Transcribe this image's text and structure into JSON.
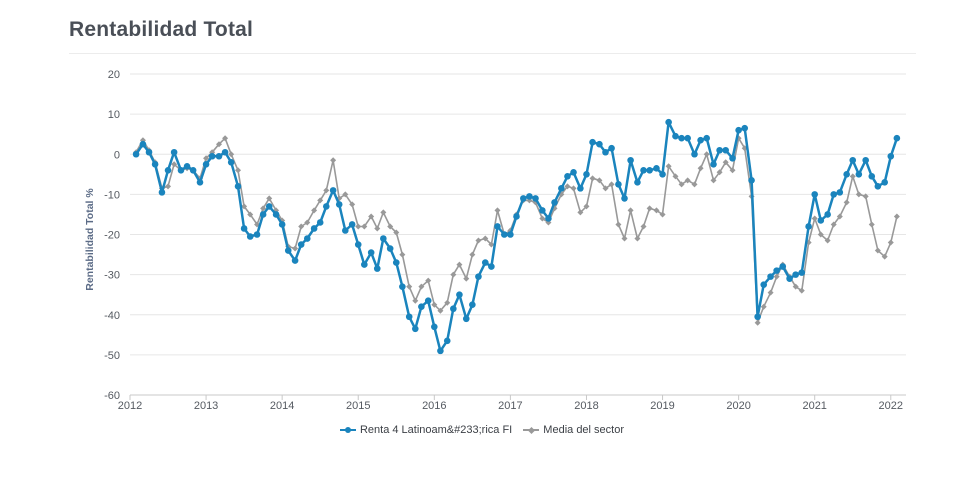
{
  "title": "Rentabilidad Total",
  "chart_data": {
    "type": "line",
    "ylabel": "Rentabilidad Total %",
    "xlabel": "",
    "ylim": [
      -60,
      20
    ],
    "xlim": [
      2012.0,
      2022.2
    ],
    "yticks": [
      20,
      10,
      0,
      -10,
      -20,
      -30,
      -40,
      -50,
      -60
    ],
    "xticks": [
      "2012",
      "2013",
      "2014",
      "2015",
      "2016",
      "2017",
      "2018",
      "2019",
      "2020",
      "2021",
      "2022"
    ],
    "legend_position": "bottom",
    "grid": true,
    "series": [
      {
        "name": "Renta 4 Latinoam&#233;rica FI",
        "color": "#1a84bd",
        "marker": "circle",
        "x": [
          2012.08,
          2012.17,
          2012.25,
          2012.33,
          2012.42,
          2012.5,
          2012.58,
          2012.67,
          2012.75,
          2012.83,
          2012.92,
          2013.0,
          2013.08,
          2013.17,
          2013.25,
          2013.33,
          2013.42,
          2013.5,
          2013.58,
          2013.67,
          2013.75,
          2013.83,
          2013.92,
          2014.0,
          2014.08,
          2014.17,
          2014.25,
          2014.33,
          2014.42,
          2014.5,
          2014.58,
          2014.67,
          2014.75,
          2014.83,
          2014.92,
          2015.0,
          2015.08,
          2015.17,
          2015.25,
          2015.33,
          2015.42,
          2015.5,
          2015.58,
          2015.67,
          2015.75,
          2015.83,
          2015.92,
          2016.0,
          2016.08,
          2016.17,
          2016.25,
          2016.33,
          2016.42,
          2016.5,
          2016.58,
          2016.67,
          2016.75,
          2016.83,
          2016.92,
          2017.0,
          2017.08,
          2017.17,
          2017.25,
          2017.33,
          2017.42,
          2017.5,
          2017.58,
          2017.67,
          2017.75,
          2017.83,
          2017.92,
          2018.0,
          2018.08,
          2018.17,
          2018.25,
          2018.33,
          2018.42,
          2018.5,
          2018.58,
          2018.67,
          2018.75,
          2018.83,
          2018.92,
          2019.0,
          2019.08,
          2019.17,
          2019.25,
          2019.33,
          2019.42,
          2019.5,
          2019.58,
          2019.67,
          2019.75,
          2019.83,
          2019.92,
          2020.0,
          2020.08,
          2020.17,
          2020.25,
          2020.33,
          2020.42,
          2020.5,
          2020.58,
          2020.67,
          2020.75,
          2020.83,
          2020.92,
          2021.0,
          2021.08,
          2021.17,
          2021.25,
          2021.33,
          2021.42,
          2021.5,
          2021.58,
          2021.67,
          2021.75,
          2021.83,
          2021.92,
          2022.0,
          2022.08
        ],
        "y": [
          0,
          2.5,
          0.5,
          -2.5,
          -9.5,
          -4,
          0.5,
          -4,
          -3,
          -4,
          -7,
          -2.5,
          -0.5,
          -0.5,
          0.5,
          -2,
          -8,
          -18.5,
          -20.5,
          -20,
          -15,
          -13,
          -15,
          -17.5,
          -24,
          -26.5,
          -22.5,
          -21,
          -18.5,
          -17,
          -13,
          -9,
          -12.5,
          -19,
          -17.5,
          -22.5,
          -27.5,
          -24.5,
          -28.5,
          -21,
          -23.5,
          -27,
          -33,
          -40.5,
          -43.5,
          -38,
          -36.5,
          -43,
          -49,
          -46.5,
          -38.5,
          -35,
          -41,
          -37.5,
          -30.5,
          -27,
          -28,
          -18,
          -20,
          -20,
          -15.5,
          -11,
          -10.5,
          -11,
          -14,
          -16,
          -12,
          -8.5,
          -5.5,
          -4.5,
          -8.5,
          -5,
          3,
          2.5,
          0.5,
          1.5,
          -7.5,
          -11,
          -1.5,
          -7,
          -4,
          -4,
          -3.5,
          -5,
          8,
          4.5,
          4,
          4,
          0,
          3.5,
          4,
          -2.5,
          1,
          1,
          -1,
          6,
          6.5,
          -6.5,
          -40.5,
          -32.5,
          -30.5,
          -29,
          -28,
          -31,
          -30,
          -29.5,
          -18,
          -10,
          -16.5,
          -15,
          -10,
          -9.5,
          -5,
          -1.5,
          -5,
          -1.5,
          -5.5,
          -8,
          -7,
          -0.5,
          4
        ]
      },
      {
        "name": "Media del sector",
        "color": "#999999",
        "marker": "diamond",
        "x": [
          2012.08,
          2012.17,
          2012.25,
          2012.33,
          2012.42,
          2012.5,
          2012.58,
          2012.67,
          2012.75,
          2012.83,
          2012.92,
          2013.0,
          2013.08,
          2013.17,
          2013.25,
          2013.33,
          2013.42,
          2013.5,
          2013.58,
          2013.67,
          2013.75,
          2013.83,
          2013.92,
          2014.0,
          2014.08,
          2014.17,
          2014.25,
          2014.33,
          2014.42,
          2014.5,
          2014.58,
          2014.67,
          2014.75,
          2014.83,
          2014.92,
          2015.0,
          2015.08,
          2015.17,
          2015.25,
          2015.33,
          2015.42,
          2015.5,
          2015.58,
          2015.67,
          2015.75,
          2015.83,
          2015.92,
          2016.0,
          2016.08,
          2016.17,
          2016.25,
          2016.33,
          2016.42,
          2016.5,
          2016.58,
          2016.67,
          2016.75,
          2016.83,
          2016.92,
          2017.0,
          2017.08,
          2017.17,
          2017.25,
          2017.33,
          2017.42,
          2017.5,
          2017.58,
          2017.67,
          2017.75,
          2017.83,
          2017.92,
          2018.0,
          2018.08,
          2018.17,
          2018.25,
          2018.33,
          2018.42,
          2018.5,
          2018.58,
          2018.67,
          2018.75,
          2018.83,
          2018.92,
          2019.0,
          2019.08,
          2019.17,
          2019.25,
          2019.33,
          2019.42,
          2019.5,
          2019.58,
          2019.67,
          2019.75,
          2019.83,
          2019.92,
          2020.0,
          2020.08,
          2020.17,
          2020.25,
          2020.33,
          2020.42,
          2020.5,
          2020.58,
          2020.67,
          2020.75,
          2020.83,
          2020.92,
          2021.0,
          2021.08,
          2021.17,
          2021.25,
          2021.33,
          2021.42,
          2021.5,
          2021.58,
          2021.67,
          2021.75,
          2021.83,
          2021.92,
          2022.0,
          2022.08
        ],
        "y": [
          0.5,
          3.5,
          1,
          -2,
          -8.5,
          -8,
          -2.5,
          -4,
          -3.5,
          -4,
          -6,
          -1,
          0.5,
          2.5,
          4,
          0,
          -4,
          -13,
          -15,
          -17.5,
          -13.5,
          -11,
          -14,
          -16.5,
          -23,
          -23.5,
          -18,
          -17,
          -14,
          -11.5,
          -9,
          -1.5,
          -11,
          -10,
          -12.5,
          -18,
          -18,
          -15.5,
          -18.5,
          -14.5,
          -18,
          -19.5,
          -25,
          -33,
          -36.5,
          -33,
          -31.5,
          -37.5,
          -39,
          -37,
          -30,
          -27.5,
          -31,
          -25,
          -21.5,
          -21,
          -22.5,
          -14,
          -20,
          -19,
          -15,
          -11.5,
          -11.5,
          -12,
          -16,
          -17,
          -13.5,
          -10,
          -8,
          -8.5,
          -14.5,
          -13,
          -6,
          -6.5,
          -8.5,
          -7.5,
          -17.5,
          -21,
          -14,
          -21,
          -18,
          -13.5,
          -14,
          -15,
          -3,
          -5.5,
          -7.5,
          -6.5,
          -7.5,
          -3.5,
          0,
          -6.5,
          -4.5,
          -2,
          -4,
          4,
          1.5,
          -10.5,
          -42,
          -38,
          -34.5,
          -30.5,
          -27.5,
          -30.5,
          -33,
          -34,
          -22,
          -16,
          -20,
          -21.5,
          -17.5,
          -15.5,
          -12,
          -5.5,
          -10,
          -10.5,
          -17.5,
          -24,
          -25.5,
          -22,
          -15.5
        ]
      }
    ]
  }
}
